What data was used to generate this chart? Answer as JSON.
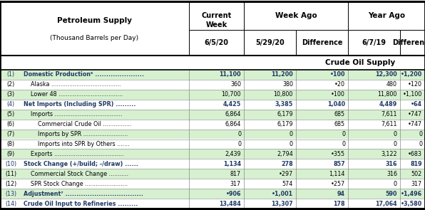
{
  "title_line1": "Petroleum Supply",
  "title_line2": "(Thousand Barrels per Day)",
  "section_header": "Crude Oil Supply",
  "rows": [
    {
      "num": "(1)",
      "label": "Domestic Production⁶ ......................",
      "bold": true,
      "indent": 0,
      "values": [
        "11,100",
        "11,200",
        "•100",
        "12,300",
        "•1,200"
      ]
    },
    {
      "num": "(2)",
      "label": "Alaska .......................................",
      "bold": false,
      "indent": 1,
      "values": [
        "360",
        "380",
        "•20",
        "480",
        "•120"
      ]
    },
    {
      "num": "(3)",
      "label": "Lower 48 ....................................",
      "bold": false,
      "indent": 1,
      "values": [
        "10,700",
        "10,800",
        "•100",
        "11,800",
        "•1,100"
      ]
    },
    {
      "num": "(4)",
      "label": "Net Imports (Including SPR) .........",
      "bold": true,
      "indent": 0,
      "values": [
        "4,425",
        "3,385",
        "1,040",
        "4,489",
        "•64"
      ]
    },
    {
      "num": "(5)",
      "label": "Imports ......................................",
      "bold": false,
      "indent": 1,
      "values": [
        "6,864",
        "6,179",
        "685",
        "7,611",
        "•747"
      ]
    },
    {
      "num": "(6)",
      "label": "Commercial Crude Oil ................",
      "bold": false,
      "indent": 2,
      "values": [
        "6,864",
        "6,179",
        "685",
        "7,611",
        "•747"
      ]
    },
    {
      "num": "(7)",
      "label": "Imports by SPR .........................",
      "bold": false,
      "indent": 2,
      "values": [
        "0",
        "0",
        "0",
        "0",
        "0"
      ]
    },
    {
      "num": "(8)",
      "label": "Imports into SPR by Others .......",
      "bold": false,
      "indent": 2,
      "values": [
        "0",
        "0",
        "0",
        "0",
        "0"
      ]
    },
    {
      "num": "(9)",
      "label": "Exports .......................................",
      "bold": false,
      "indent": 1,
      "values": [
        "2,439",
        "2,794",
        "•355",
        "3,122",
        "•683"
      ]
    },
    {
      "num": "(10)",
      "label": "Stock Change (+/build; -/draw) ......",
      "bold": true,
      "indent": 0,
      "values": [
        "1,134",
        "278",
        "857",
        "316",
        "819"
      ]
    },
    {
      "num": "(11)",
      "label": "Commercial Stock Change ...........",
      "bold": false,
      "indent": 1,
      "values": [
        "817",
        "•297",
        "1,114",
        "316",
        "502"
      ]
    },
    {
      "num": "(12)",
      "label": "SPR Stock Change ........................",
      "bold": false,
      "indent": 1,
      "values": [
        "317",
        "574",
        "•257",
        "0",
        "317"
      ]
    },
    {
      "num": "(13)",
      "label": "Adjustment⁷ ...................................",
      "bold": true,
      "indent": 0,
      "values": [
        "•906",
        "•1,001",
        "94",
        "590",
        "•1,496"
      ]
    },
    {
      "num": "(14)",
      "label": "Crude Oil Input to Refineries .........",
      "bold": true,
      "indent": 0,
      "values": [
        "13,484",
        "13,307",
        "178",
        "17,064",
        "•3,580"
      ]
    }
  ],
  "bg_green": "#d6f0d0",
  "bg_white": "#ffffff",
  "bold_color": "#1f3864",
  "normal_color": "#000000",
  "header_bg": "#ffffff",
  "border_thick": 1.5,
  "border_thin": 0.5,
  "figw": 5.96,
  "figh": 2.95,
  "dpi": 100
}
